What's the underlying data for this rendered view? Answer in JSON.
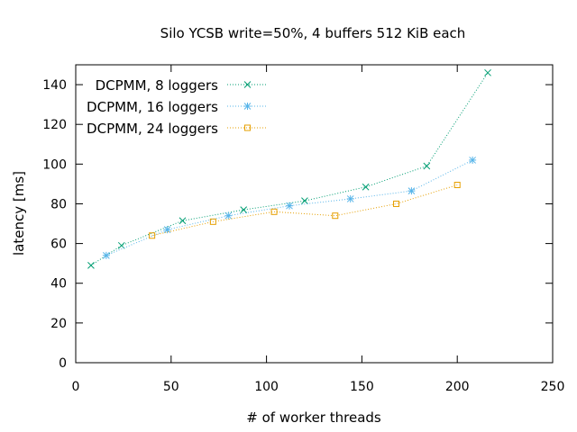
{
  "chart_data": {
    "type": "line",
    "title": "Silo YCSB write=50%, 4 buffers 512 KiB each",
    "xlabel": "# of worker threads",
    "ylabel": "latency [ms]",
    "xlim": [
      0,
      250
    ],
    "ylim": [
      0,
      150
    ],
    "xticks": [
      0,
      50,
      100,
      150,
      200,
      250
    ],
    "yticks": [
      0,
      20,
      40,
      60,
      80,
      100,
      120,
      140
    ],
    "grid": false,
    "legend_position": "top-left",
    "series": [
      {
        "name": "DCPMM, 8 loggers",
        "color": "#009e73",
        "marker": "cross",
        "x": [
          8,
          24,
          56,
          88,
          120,
          152,
          184,
          216
        ],
        "y": [
          49,
          59,
          71.5,
          77,
          81.5,
          88.5,
          99,
          146
        ]
      },
      {
        "name": "DCPMM, 16 loggers",
        "color": "#56b4e9",
        "marker": "star",
        "x": [
          16,
          48,
          80,
          112,
          144,
          176,
          208
        ],
        "y": [
          54,
          67,
          74,
          79,
          82.5,
          86.5,
          102
        ]
      },
      {
        "name": "DCPMM, 24 loggers",
        "color": "#e69f00",
        "marker": "square",
        "x": [
          40,
          72,
          104,
          136,
          168,
          200
        ],
        "y": [
          64,
          71,
          76,
          74,
          80,
          89.5
        ]
      }
    ]
  }
}
